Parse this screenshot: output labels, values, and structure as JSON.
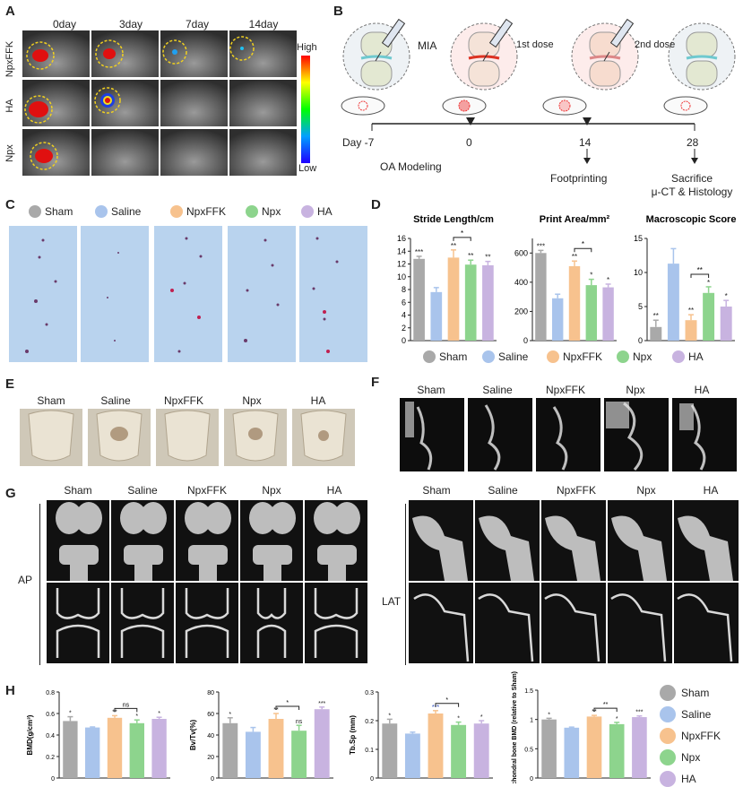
{
  "panel_labels": {
    "A": "A",
    "B": "B",
    "C": "C",
    "D": "D",
    "E": "E",
    "F": "F",
    "G": "G",
    "H": "H"
  },
  "panelA": {
    "days": [
      "0day",
      "3day",
      "7day",
      "14day"
    ],
    "rows": [
      "NpxFFK",
      "HA",
      "Npx"
    ],
    "colorbar_high": "High",
    "colorbar_low": "Low"
  },
  "panelB": {
    "mia": "MIA",
    "first_dose": "1st dose",
    "second_dose": "2nd dose",
    "timeline": [
      "Day -7",
      "0",
      "14",
      "28"
    ],
    "oa_modeling": "OA Modeling",
    "footprinting": "Footprinting",
    "sacrifice_line1": "Sacrifice",
    "sacrifice_line2": "μ-CT & Histology"
  },
  "groups": [
    "Sham",
    "Saline",
    "NpxFFK",
    "Npx",
    "HA"
  ],
  "colors": {
    "Sham": "#a9a9a9",
    "Saline": "#a9c4ec",
    "NpxFFK": "#f7c28e",
    "Npx": "#8dd48d",
    "HA": "#c8b3e0",
    "sig_blue": "#1f3fb8"
  },
  "panelG": {
    "ap": "AP",
    "lat": "LAT"
  },
  "chart_data": [
    {
      "type": "bar",
      "title": "Stride Length/cm",
      "categories": [
        "Sham",
        "Saline",
        "NpxFFK",
        "Npx",
        "HA"
      ],
      "values": [
        12.8,
        7.6,
        13.0,
        11.9,
        11.8
      ],
      "errors": [
        0.4,
        0.7,
        1.2,
        0.7,
        0.6
      ],
      "sig": [
        "***",
        "",
        "**",
        "**",
        "**"
      ],
      "yticks": [
        0,
        2,
        4,
        6,
        8,
        10,
        12,
        14,
        16
      ],
      "ylim": [
        0,
        16
      ],
      "bracket": {
        "from": 2,
        "to": 3,
        "label": "*"
      }
    },
    {
      "type": "bar",
      "title": "Print Area/mm²",
      "categories": [
        "Sham",
        "Saline",
        "NpxFFK",
        "Npx",
        "HA"
      ],
      "values": [
        600,
        290,
        510,
        380,
        365
      ],
      "errors": [
        18,
        28,
        35,
        40,
        22
      ],
      "sig": [
        "***",
        "",
        "**",
        "*",
        "*"
      ],
      "yticks": [
        0,
        200,
        400,
        600
      ],
      "ylim": [
        0,
        700
      ],
      "bracket": {
        "from": 2,
        "to": 3,
        "label": "*"
      }
    },
    {
      "type": "bar",
      "title": "Macroscopic Score",
      "categories": [
        "Sham",
        "Saline",
        "NpxFFK",
        "Npx",
        "HA"
      ],
      "values": [
        2,
        11.3,
        3,
        7,
        5
      ],
      "errors": [
        1,
        2.2,
        0.8,
        0.9,
        0.9
      ],
      "sig": [
        "**",
        "",
        "**",
        "*",
        "*"
      ],
      "yticks": [
        0,
        5,
        10,
        15
      ],
      "ylim": [
        0,
        15
      ],
      "bracket": {
        "from": 2,
        "to": 3,
        "label": "**"
      }
    },
    {
      "type": "bar",
      "ylabel": "BMD(g/cm³)",
      "categories": [
        "Sham",
        "Saline",
        "NpxFFK",
        "Npx",
        "HA"
      ],
      "values": [
        0.53,
        0.47,
        0.56,
        0.51,
        0.55
      ],
      "errors": [
        0.04,
        0.005,
        0.02,
        0.03,
        0.015
      ],
      "sig": [
        "*",
        "",
        "**",
        "*",
        "*"
      ],
      "yticks": [
        0.0,
        0.2,
        0.4,
        0.6,
        0.8
      ],
      "ylim": [
        0,
        0.8
      ],
      "bracket": {
        "from": 2,
        "to": 3,
        "label": "ns"
      }
    },
    {
      "type": "bar",
      "ylabel": "Bv/Tv(%)",
      "categories": [
        "Sham",
        "Saline",
        "NpxFFK",
        "Npx",
        "HA"
      ],
      "values": [
        51,
        43,
        55,
        44,
        64
      ],
      "errors": [
        5,
        4,
        5,
        5,
        2
      ],
      "sig": [
        "*",
        "",
        "**",
        "ns",
        "***"
      ],
      "yticks": [
        0,
        20,
        40,
        60,
        80
      ],
      "ylim": [
        0,
        80
      ],
      "bracket": {
        "from": 2,
        "to": 3,
        "label": "*"
      }
    },
    {
      "type": "bar",
      "ylabel": "Tb.Sp (mm)",
      "categories": [
        "Sham",
        "Saline",
        "NpxFFK",
        "Npx",
        "HA"
      ],
      "values": [
        0.19,
        0.155,
        0.225,
        0.185,
        0.19
      ],
      "errors": [
        0.015,
        0.005,
        0.01,
        0.01,
        0.01
      ],
      "sig": [
        "*",
        "",
        "***",
        "*",
        "*"
      ],
      "yticks": [
        0.0,
        0.1,
        0.2,
        0.3
      ],
      "ylim": [
        0,
        0.3
      ],
      "bracket": {
        "from": 2,
        "to": 3,
        "label": "*"
      }
    },
    {
      "type": "bar",
      "ylabel": "Subchondral bone BMD (relative to Sham)",
      "categories": [
        "Sham",
        "Saline",
        "NpxFFK",
        "Npx",
        "HA"
      ],
      "values": [
        1.0,
        0.86,
        1.05,
        0.92,
        1.04
      ],
      "errors": [
        0.02,
        0.01,
        0.02,
        0.03,
        0.02
      ],
      "sig": [
        "*",
        "",
        "**",
        "*",
        "***"
      ],
      "yticks": [
        0.0,
        0.5,
        1.0,
        1.5
      ],
      "ylim": [
        0,
        1.5
      ],
      "bracket": {
        "from": 2,
        "to": 3,
        "label": "**"
      }
    }
  ]
}
